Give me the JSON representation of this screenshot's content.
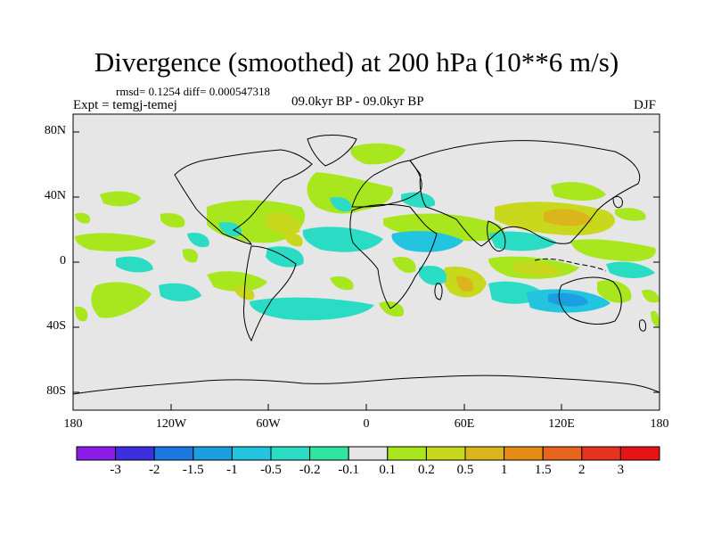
{
  "title": "Divergence (smoothed) at 200 hPa (10**6 m/s)",
  "stats": "rmsd= 0.1254 diff= 0.000547318",
  "expt": "Expt = temgj-temej",
  "period": "09.0kyr BP - 09.0kyr BP",
  "season": "DJF",
  "lat_labels": [
    "80N",
    "40N",
    "0",
    "40S",
    "80S"
  ],
  "lon_labels": [
    "180",
    "120W",
    "60W",
    "0",
    "60E",
    "120E",
    "180"
  ],
  "colorbar": {
    "levels": [
      "-3",
      "-2",
      "-1.5",
      "-1",
      "-0.5",
      "-0.2",
      "-0.1",
      "0.1",
      "0.2",
      "0.5",
      "1",
      "1.5",
      "2",
      "3"
    ],
    "colors": [
      "#8a1ce6",
      "#3d2ee0",
      "#1a78e0",
      "#1c9fe0",
      "#22c4e0",
      "#2bdcc4",
      "#2ee6a0",
      "#e6e6e6",
      "#a8e61e",
      "#c8d81c",
      "#dcb41c",
      "#e68c14",
      "#e6641e",
      "#e6321e",
      "#e61414"
    ]
  }
}
